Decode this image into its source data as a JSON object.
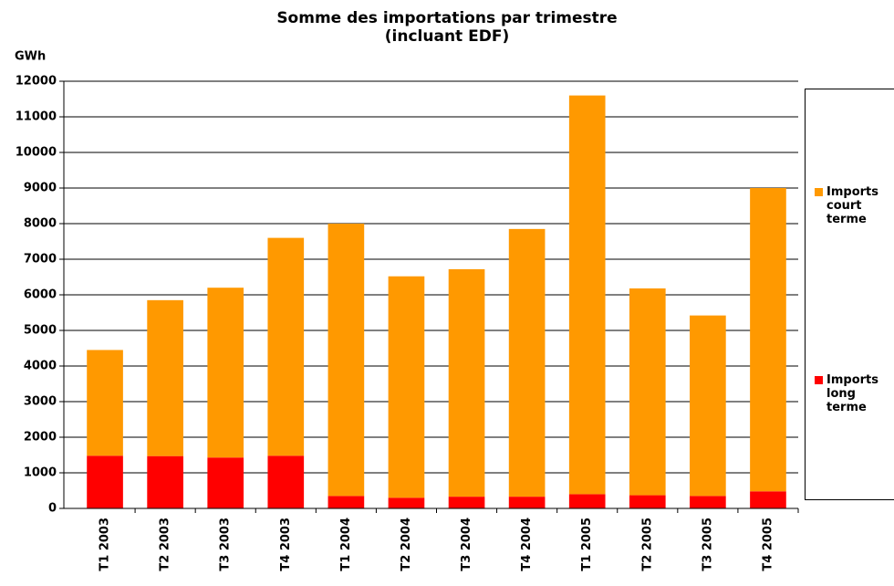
{
  "chart_data": {
    "type": "stacked_bar",
    "title": "Somme des importations par trimestre",
    "subtitle": "(incluant EDF)",
    "y_label": "GWh",
    "categories": [
      "T1 2003",
      "T2 2003",
      "T3 2003",
      "T4 2003",
      "T1 2004",
      "T2 2004",
      "T3 2004",
      "T4 2004",
      "T1 2005",
      "T2 2005",
      "T3 2005",
      "T4 2005"
    ],
    "series": [
      {
        "name": "Imports long terme",
        "color": "#ff0000",
        "values": [
          1480,
          1470,
          1430,
          1480,
          350,
          300,
          330,
          330,
          400,
          370,
          350,
          480
        ]
      },
      {
        "name": "Imports court terme",
        "color": "#ff9900",
        "values": [
          2970,
          4380,
          4770,
          6120,
          7650,
          6220,
          6390,
          7520,
          11200,
          5810,
          5070,
          8520
        ]
      }
    ],
    "ylim": [
      0,
      12000
    ],
    "yticks": [
      0,
      1000,
      2000,
      3000,
      4000,
      5000,
      6000,
      7000,
      8000,
      9000,
      10000,
      11000,
      12000
    ],
    "grid": true,
    "legend": "right"
  }
}
